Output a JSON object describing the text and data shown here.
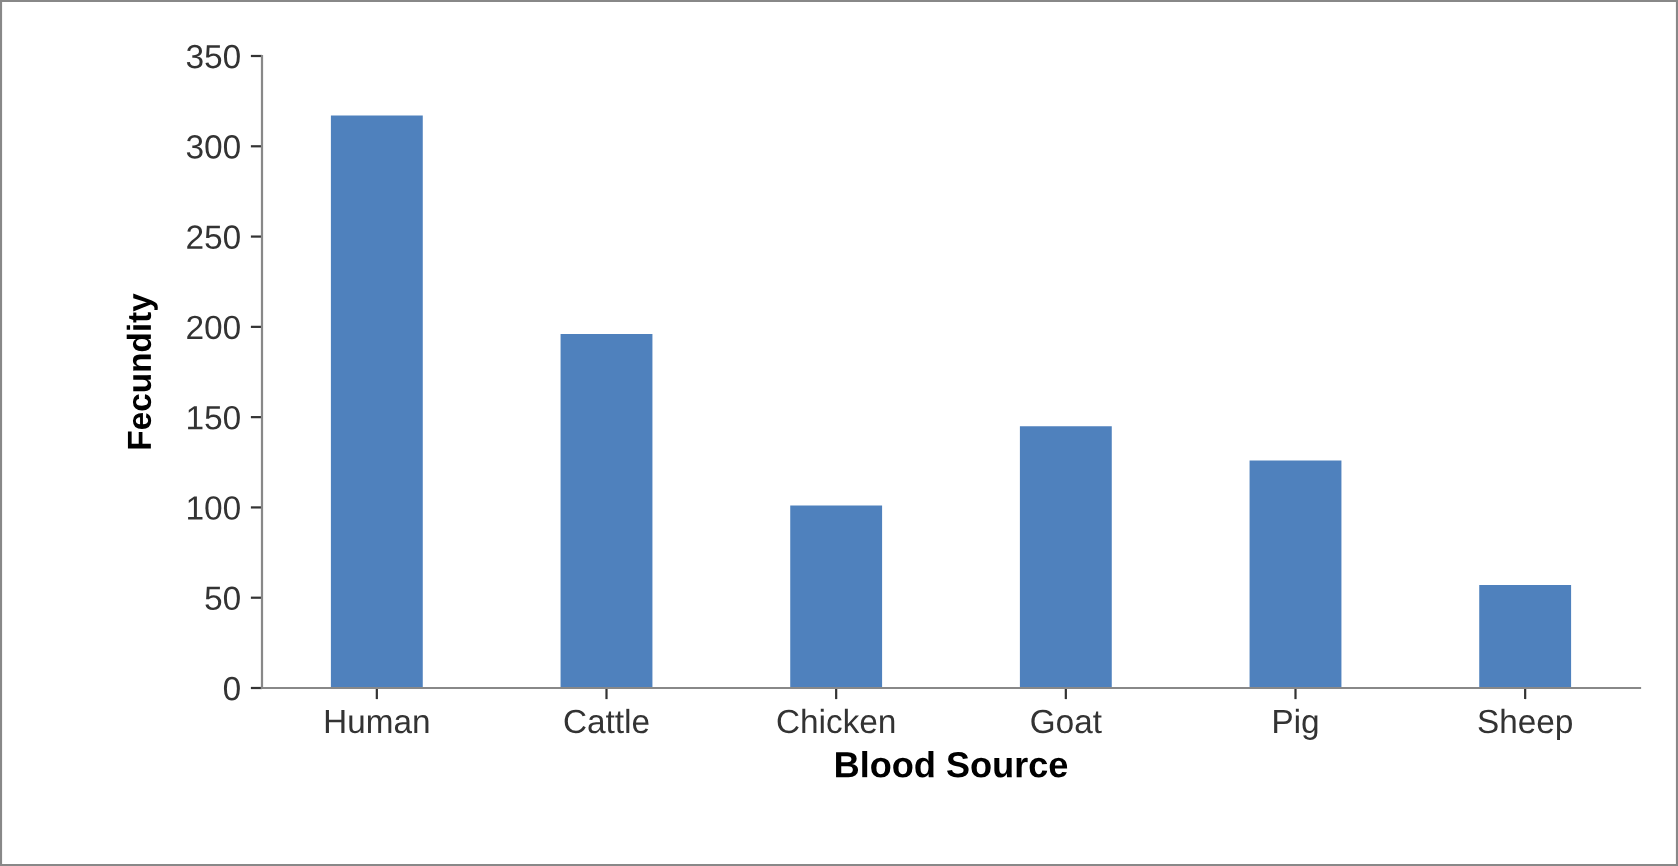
{
  "chart_data": {
    "type": "bar",
    "xlabel": "Blood Source",
    "ylabel": "Fecundity",
    "categories": [
      "Human",
      "Cattle",
      "Chicken",
      "Goat",
      "Pig",
      "Sheep"
    ],
    "values": [
      317,
      196,
      101,
      145,
      126,
      57
    ],
    "color": "#4f81bd",
    "ylim": [
      0,
      350
    ],
    "yticks": [
      0,
      50,
      100,
      150,
      200,
      250,
      300,
      350
    ],
    "grid": false
  }
}
